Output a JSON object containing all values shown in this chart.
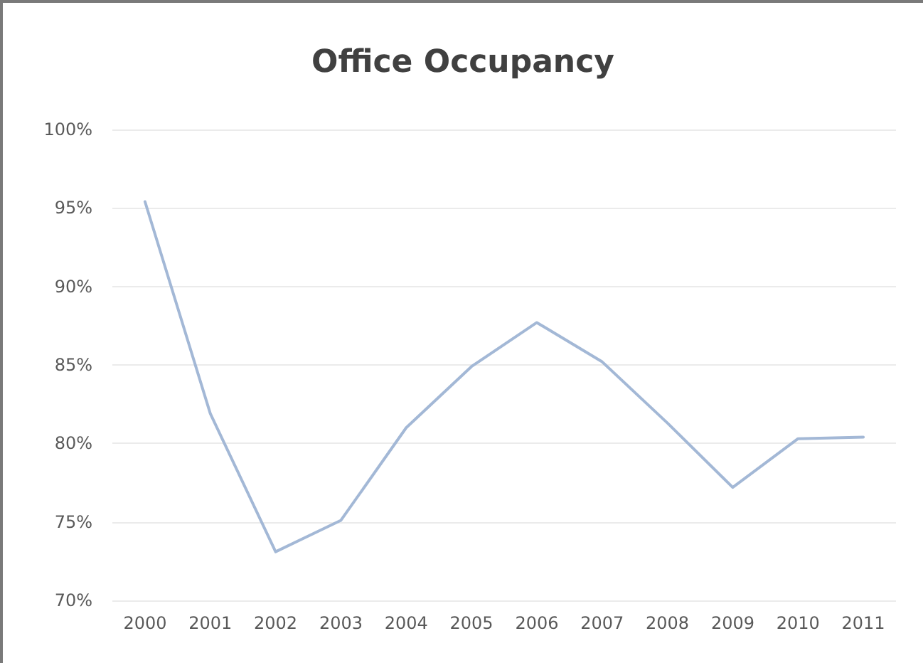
{
  "chart_data": {
    "type": "line",
    "title": "Office Occupancy",
    "categories": [
      "2000",
      "2001",
      "2002",
      "2003",
      "2004",
      "2005",
      "2006",
      "2007",
      "2008",
      "2009",
      "2010",
      "2011"
    ],
    "series": [
      {
        "color": "#a3b8d6",
        "values": [
          95.4,
          81.9,
          73.1,
          75.1,
          81.0,
          84.9,
          87.7,
          85.2,
          81.3,
          77.2,
          80.3,
          80.4
        ]
      }
    ],
    "ylim": [
      70,
      100
    ],
    "yticks": [
      {
        "value": 70,
        "label": "70%"
      },
      {
        "value": 75,
        "label": "75%"
      },
      {
        "value": 80,
        "label": "80%"
      },
      {
        "value": 85,
        "label": "85%"
      },
      {
        "value": 90,
        "label": "90%"
      },
      {
        "value": 95,
        "label": "95%"
      },
      {
        "value": 100,
        "label": "100%"
      }
    ],
    "grid": "y"
  }
}
